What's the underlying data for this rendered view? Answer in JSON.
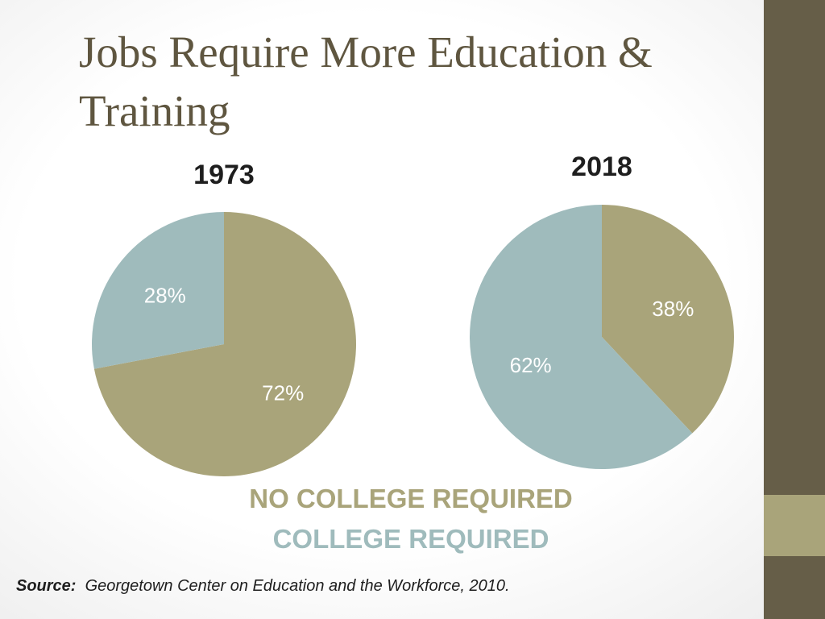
{
  "title": {
    "line1": "Jobs Require More Education &",
    "line2": "Training"
  },
  "colors": {
    "no_college": "#a9a47a",
    "college": "#9fbbbc",
    "accent_dark": "#665e48",
    "accent_light": "#a9a47a",
    "title": "#5f5640"
  },
  "chart_data": [
    {
      "type": "pie",
      "title": "1973",
      "slices": [
        {
          "label": "NO COLLEGE REQUIRED",
          "value": 72,
          "display": "72%",
          "color": "#a9a47a"
        },
        {
          "label": "COLLEGE REQUIRED",
          "value": 28,
          "display": "28%",
          "color": "#9fbbbc"
        }
      ]
    },
    {
      "type": "pie",
      "title": "2018",
      "slices": [
        {
          "label": "NO COLLEGE REQUIRED",
          "value": 38,
          "display": "38%",
          "color": "#a9a47a"
        },
        {
          "label": "COLLEGE REQUIRED",
          "value": 62,
          "display": "62%",
          "color": "#9fbbbc"
        }
      ]
    }
  ],
  "legend": [
    {
      "label": "NO COLLEGE REQUIRED",
      "color": "#a9a47a"
    },
    {
      "label": "COLLEGE REQUIRED",
      "color": "#9fbbbc"
    }
  ],
  "source": {
    "prefix": "Source:",
    "text": "Georgetown Center on Education and the Workforce, 2010."
  }
}
